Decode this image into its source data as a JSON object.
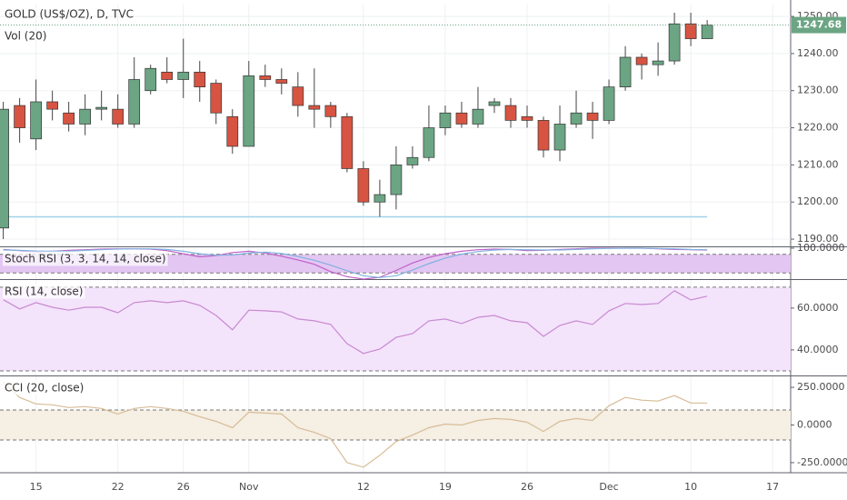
{
  "chart_data": [
    {
      "type": "candlestick",
      "title": "GOLD (US$/OZ), D, TVC",
      "subtitle": "Vol (20)",
      "x": [
        -2,
        -1,
        0,
        1,
        2,
        3,
        4,
        5,
        6,
        7,
        8,
        9,
        10,
        11,
        12,
        13,
        14,
        15,
        16,
        17,
        18,
        19,
        20,
        21,
        22,
        23,
        24,
        25,
        26,
        27,
        28,
        29,
        30,
        31,
        32,
        33,
        34,
        35,
        36,
        37,
        38,
        39,
        40,
        41
      ],
      "open": [
        1193,
        1226,
        1217,
        1227,
        1224,
        1221,
        1225,
        1225,
        1221,
        1230,
        1235,
        1233,
        1235,
        1232,
        1223,
        1215,
        1234,
        1233,
        1231,
        1226,
        1226,
        1223,
        1209,
        1200,
        1202,
        1210,
        1212,
        1220,
        1224,
        1221,
        1226,
        1226,
        1223,
        1222,
        1214,
        1221,
        1224,
        1222,
        1231,
        1239,
        1237,
        1238,
        1248,
        1244
      ],
      "high": [
        1227,
        1228,
        1233,
        1230,
        1227,
        1229,
        1230,
        1229,
        1239,
        1237,
        1239,
        1244,
        1238,
        1233,
        1225,
        1238,
        1237,
        1236,
        1235,
        1236,
        1227,
        1224,
        1211,
        1206,
        1215,
        1215,
        1226,
        1226,
        1227,
        1231,
        1228,
        1228,
        1226,
        1223,
        1226,
        1230,
        1227,
        1233,
        1242,
        1240,
        1243,
        1251,
        1251,
        1249
      ],
      "low": [
        1190,
        1216,
        1214,
        1222,
        1219,
        1218,
        1222,
        1220,
        1220,
        1229,
        1232,
        1228,
        1227,
        1221,
        1213,
        1215,
        1231,
        1229,
        1223,
        1220,
        1220,
        1208,
        1199,
        1196,
        1198,
        1209,
        1211,
        1218,
        1220,
        1220,
        1224,
        1220,
        1220,
        1212,
        1211,
        1220,
        1217,
        1221,
        1230,
        1233,
        1234,
        1237,
        1242,
        1244
      ],
      "close": [
        1225,
        1220,
        1227,
        1225,
        1221,
        1225,
        1225.5,
        1221,
        1233,
        1236,
        1233,
        1235,
        1231,
        1224,
        1215,
        1234,
        1233,
        1232,
        1226,
        1225,
        1223,
        1209,
        1200,
        1202,
        1210,
        1212,
        1220,
        1224,
        1221,
        1225,
        1227,
        1222,
        1222,
        1214,
        1221,
        1224,
        1222,
        1231,
        1239,
        1237,
        1238,
        1248,
        1244,
        1247.68
      ],
      "up_color": "#6ba583",
      "down_color": "#d75442",
      "hline": 1196,
      "hline_color": "#9fd4ea",
      "xlim": [
        -2.2,
        46.1
      ],
      "xticks": [
        {
          "value": 0,
          "label": "15"
        },
        {
          "value": 5,
          "label": "22"
        },
        {
          "value": 9,
          "label": "26"
        },
        {
          "value": 13,
          "label": "Nov"
        },
        {
          "value": 20,
          "label": "12"
        },
        {
          "value": 25,
          "label": "19"
        },
        {
          "value": 30,
          "label": "26"
        },
        {
          "value": 35,
          "label": "Dec"
        },
        {
          "value": 40,
          "label": "10"
        },
        {
          "value": 45,
          "label": "17"
        }
      ],
      "ylim": [
        1188.3,
        1253.2
      ],
      "yticks": [
        {
          "value": 1190,
          "label": "1190.00"
        },
        {
          "value": 1200,
          "label": "1200.00"
        },
        {
          "value": 1210,
          "label": "1210.00"
        },
        {
          "value": 1220,
          "label": "1220.00"
        },
        {
          "value": 1230,
          "label": "1230.00"
        },
        {
          "value": 1240,
          "label": "1240.00"
        },
        {
          "value": 1250,
          "label": "1250.00"
        }
      ],
      "grid": true
    },
    {
      "type": "line",
      "title": "Stoch RSI (3, 3, 14, 14, close)",
      "ylim": [
        0,
        100
      ],
      "yticks": [
        {
          "value": 100,
          "label": "100.0000"
        }
      ],
      "bands": [
        80,
        20
      ],
      "band_color": "#e3c6f2",
      "series": [
        {
          "color": "#c060c8",
          "values": [
            96,
            92,
            88,
            90,
            93,
            95,
            97,
            98,
            98,
            97,
            92,
            82,
            72,
            76,
            86,
            90,
            84,
            74,
            62,
            48,
            24,
            8,
            0,
            6,
            28,
            52,
            70,
            82,
            90,
            95,
            97,
            96,
            92,
            93,
            96,
            98,
            100,
            100,
            100,
            100,
            98,
            96,
            95,
            94
          ]
        },
        {
          "color": "#7fb2e0",
          "values": [
            94,
            93,
            91,
            90,
            90,
            93,
            95,
            97,
            98,
            98,
            96,
            90,
            82,
            77,
            78,
            84,
            87,
            83,
            73,
            61,
            45,
            27,
            11,
            5,
            11,
            29,
            50,
            68,
            81,
            89,
            94,
            96,
            95,
            94,
            94,
            96,
            98,
            99,
            100,
            100,
            99,
            98,
            96,
            95
          ]
        }
      ]
    },
    {
      "type": "line",
      "title": "RSI (14, close)",
      "ylim": [
        27.8,
        73
      ],
      "yticks": [
        {
          "value": 60,
          "label": "60.0000"
        },
        {
          "value": 40,
          "label": "40.0000"
        }
      ],
      "bands": [
        70,
        30
      ],
      "band_color": "#f3e3fb",
      "series": [
        {
          "color": "#c88ad0",
          "values": [
            64,
            59.6,
            62.6,
            60.4,
            59,
            60.4,
            60.4,
            57.8,
            62.6,
            63.5,
            62.6,
            63.5,
            61.3,
            56.5,
            49.6,
            59,
            58.7,
            58.2,
            54.8,
            53.9,
            52.2,
            43,
            38.3,
            40.4,
            46,
            47.8,
            53.9,
            54.8,
            52.6,
            55.6,
            56.5,
            53.9,
            53,
            46.5,
            51.7,
            53.9,
            52.2,
            58.7,
            62.2,
            61.7,
            62.2,
            68.3,
            63.9,
            65.7
          ]
        }
      ]
    },
    {
      "type": "line",
      "title": "CCI (20, close)",
      "ylim": [
        -317,
        317
      ],
      "yticks": [
        {
          "value": 250,
          "label": "250.0000"
        },
        {
          "value": 0,
          "label": "0.0000"
        },
        {
          "value": -250,
          "label": "-250.0000"
        }
      ],
      "bands": [
        100,
        -100
      ],
      "band_color": "#f5efe4",
      "series": [
        {
          "color": "#d8bc96",
          "values": [
            287,
            183,
            140,
            134,
            116,
            122,
            110,
            73,
            110,
            122,
            110,
            91,
            55,
            24,
            -18,
            85,
            79,
            73,
            -18,
            -49,
            -91,
            -250,
            -280,
            -201,
            -110,
            -67,
            -18,
            6,
            0,
            30,
            43,
            37,
            18,
            -43,
            24,
            43,
            30,
            128,
            183,
            165,
            159,
            195,
            146,
            146
          ]
        }
      ]
    }
  ]
}
